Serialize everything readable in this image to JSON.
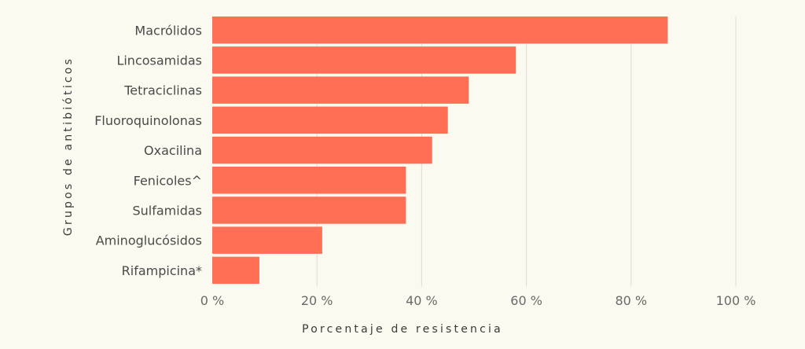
{
  "chart_data": {
    "type": "bar",
    "orientation": "horizontal",
    "categories": [
      "Macrólidos",
      "Lincosamidas",
      "Tetraciclinas",
      "Fluoroquinolonas",
      "Oxacilina",
      "Fenicoles^",
      "Sulfamidas",
      "Aminoglucósidos",
      "Rifampicina*"
    ],
    "values": [
      87,
      58,
      49,
      45,
      42,
      37,
      37,
      21,
      9
    ],
    "xlabel": "Porcentaje de resistencia",
    "ylabel": "Grupos de antibióticos",
    "xlim": [
      0,
      100
    ],
    "xticks": [
      0,
      20,
      40,
      60,
      80,
      100
    ],
    "xtick_labels": [
      "0 %",
      "20 %",
      "40 %",
      "60 %",
      "80 %",
      "100 %"
    ],
    "bar_color": "#ff6f55",
    "grid": true
  }
}
